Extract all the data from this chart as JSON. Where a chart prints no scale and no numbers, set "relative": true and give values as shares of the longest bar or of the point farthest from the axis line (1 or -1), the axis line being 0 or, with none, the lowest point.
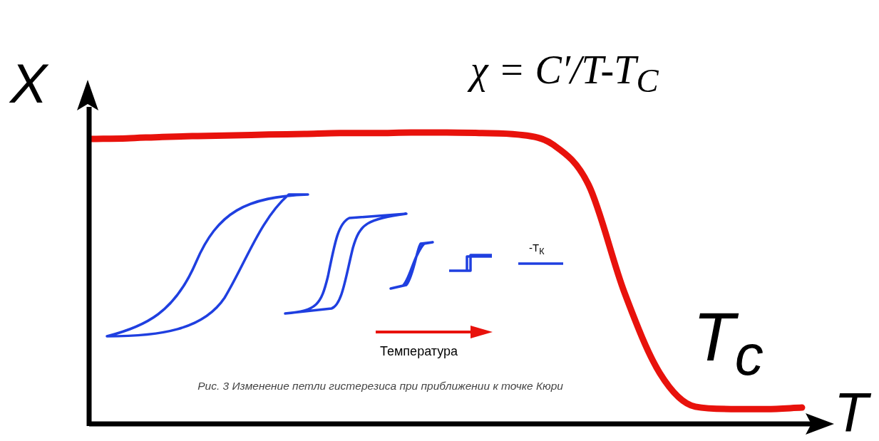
{
  "chart_data": {
    "type": "line",
    "xlabel": "T",
    "ylabel": "X",
    "categories": [
      null,
      null,
      null,
      null,
      null,
      null,
      null,
      null,
      null,
      null,
      null,
      null,
      null,
      null,
      null,
      null,
      null,
      null,
      null,
      null,
      null
    ],
    "series": [
      {
        "color": "#e8120c",
        "values": [
          0.978,
          0.98,
          0.985,
          0.988,
          0.99,
          0.993,
          0.995,
          0.998,
          0.998,
          1,
          1,
          0.998,
          0.993,
          0.958,
          0.819,
          0.452,
          0.174,
          0.059,
          0.051,
          0.051,
          0.056
        ]
      }
    ],
    "relative": true,
    "marker": "none",
    "legend": false,
    "annotations": [
      "χ = C′/T-T$_{C}$",
      "T$_{c}$",
      "-T$_{К}$",
      "Температура",
      "Рис. 3 Изменение петли гистерезиса при приближении к точке Кюри"
    ]
  }
}
